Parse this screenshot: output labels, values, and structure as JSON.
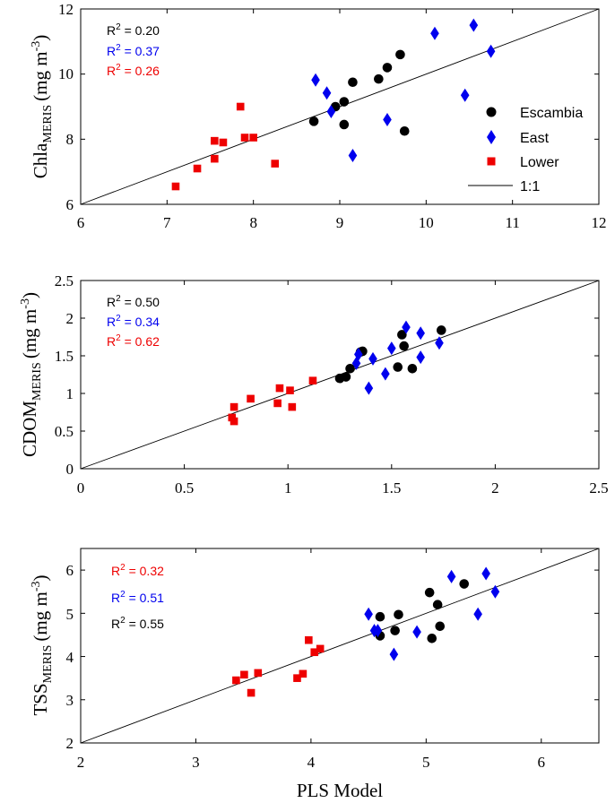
{
  "colors": {
    "Escambia": "#000000",
    "East": "#0000ee",
    "Lower": "#ee0000"
  },
  "chart_data": [
    {
      "type": "scatter",
      "ylabel_main": "Chla",
      "ylabel_sub": "MERIS",
      "ylabel_units": "(mg m",
      "ylabel_exp": "-3",
      "ylabel_close": ")",
      "xlim": [
        6,
        12
      ],
      "ylim": [
        6,
        12
      ],
      "xticks": [
        "6",
        "7",
        "8",
        "9",
        "10",
        "11",
        "12"
      ],
      "yticks": [
        "6",
        "8",
        "10",
        "12"
      ],
      "r2": [
        {
          "label": "R",
          "sup": "2",
          "value": " = 0.20",
          "group": "Escambia"
        },
        {
          "label": "R",
          "sup": "2",
          "value": " = 0.37",
          "group": "East"
        },
        {
          "label": "R",
          "sup": "2",
          "value": " = 0.26",
          "group": "Lower"
        }
      ],
      "legend": [
        {
          "name": "Escambia",
          "marker": "circle"
        },
        {
          "name": "East",
          "marker": "diamond"
        },
        {
          "name": "Lower",
          "marker": "square"
        },
        {
          "name": "1:1",
          "marker": "line"
        }
      ],
      "series": [
        {
          "name": "Escambia",
          "marker": "circle",
          "points": [
            [
              8.7,
              8.55
            ],
            [
              9.05,
              8.45
            ],
            [
              8.95,
              9.0
            ],
            [
              9.05,
              9.15
            ],
            [
              9.15,
              9.75
            ],
            [
              9.45,
              9.85
            ],
            [
              9.55,
              10.2
            ],
            [
              9.7,
              10.6
            ],
            [
              9.75,
              8.25
            ]
          ]
        },
        {
          "name": "East",
          "marker": "diamond",
          "points": [
            [
              8.72,
              9.82
            ],
            [
              8.85,
              9.42
            ],
            [
              8.9,
              8.85
            ],
            [
              9.15,
              7.5
            ],
            [
              9.55,
              8.6
            ],
            [
              10.1,
              11.25
            ],
            [
              10.55,
              11.5
            ],
            [
              10.75,
              10.7
            ],
            [
              10.45,
              9.35
            ]
          ]
        },
        {
          "name": "Lower",
          "marker": "square",
          "points": [
            [
              7.1,
              6.55
            ],
            [
              7.35,
              7.1
            ],
            [
              7.55,
              7.4
            ],
            [
              7.55,
              7.95
            ],
            [
              7.65,
              7.9
            ],
            [
              7.85,
              9.0
            ],
            [
              7.9,
              8.05
            ],
            [
              8.0,
              8.05
            ],
            [
              8.25,
              7.25
            ]
          ]
        }
      ]
    },
    {
      "type": "scatter",
      "ylabel_main": "CDOM",
      "ylabel_sub": "MERIS",
      "ylabel_units": "(mg m",
      "ylabel_exp": "-3",
      "ylabel_close": ")",
      "xlim": [
        0,
        2.5
      ],
      "ylim": [
        0,
        2.5
      ],
      "xticks": [
        "0",
        "0.5",
        "1",
        "1.5",
        "2",
        "2.5"
      ],
      "yticks": [
        "0",
        "0.5",
        "1",
        "1.5",
        "2",
        "2.5"
      ],
      "r2": [
        {
          "label": "R",
          "sup": "2",
          "value": " = 0.50",
          "group": "Escambia"
        },
        {
          "label": "R",
          "sup": "2",
          "value": " = 0.34",
          "group": "East"
        },
        {
          "label": "R",
          "sup": "2",
          "value": " = 0.62",
          "group": "Lower"
        }
      ],
      "series": [
        {
          "name": "Escambia",
          "marker": "circle",
          "points": [
            [
              1.25,
              1.2
            ],
            [
              1.28,
              1.22
            ],
            [
              1.3,
              1.33
            ],
            [
              1.35,
              1.55
            ],
            [
              1.36,
              1.56
            ],
            [
              1.53,
              1.35
            ],
            [
              1.55,
              1.78
            ],
            [
              1.56,
              1.63
            ],
            [
              1.6,
              1.33
            ],
            [
              1.74,
              1.84
            ]
          ]
        },
        {
          "name": "East",
          "marker": "diamond",
          "points": [
            [
              1.33,
              1.4
            ],
            [
              1.34,
              1.52
            ],
            [
              1.39,
              1.07
            ],
            [
              1.41,
              1.46
            ],
            [
              1.47,
              1.26
            ],
            [
              1.5,
              1.6
            ],
            [
              1.57,
              1.88
            ],
            [
              1.64,
              1.8
            ],
            [
              1.64,
              1.48
            ],
            [
              1.73,
              1.67
            ]
          ]
        },
        {
          "name": "Lower",
          "marker": "square",
          "points": [
            [
              0.73,
              0.68
            ],
            [
              0.74,
              0.82
            ],
            [
              0.74,
              0.63
            ],
            [
              0.82,
              0.93
            ],
            [
              0.95,
              0.87
            ],
            [
              0.96,
              1.07
            ],
            [
              1.01,
              1.04
            ],
            [
              1.02,
              0.82
            ],
            [
              1.12,
              1.17
            ]
          ]
        }
      ]
    },
    {
      "type": "scatter",
      "xlabel": "PLS Model",
      "ylabel_main": "TSS",
      "ylabel_sub": "MERIS",
      "ylabel_units": "(mg m",
      "ylabel_exp": "-3",
      "ylabel_close": ")",
      "xlim": [
        2,
        6.5
      ],
      "ylim": [
        2,
        6.5
      ],
      "xticks": [
        "2",
        "3",
        "4",
        "5",
        "6"
      ],
      "yticks": [
        "2",
        "3",
        "4",
        "5",
        "6"
      ],
      "r2": [
        {
          "label": "R",
          "sup": "2",
          "value": " = 0.32",
          "group": "Lower"
        },
        {
          "label": "R",
          "sup": "2",
          "value": " = 0.51",
          "group": "East"
        },
        {
          "label": "R",
          "sup": "2",
          "value": " = 0.55",
          "group": "Escambia"
        }
      ],
      "series": [
        {
          "name": "Escambia",
          "marker": "circle",
          "points": [
            [
              4.6,
              4.92
            ],
            [
              4.6,
              4.48
            ],
            [
              4.73,
              4.6
            ],
            [
              4.76,
              4.97
            ],
            [
              5.03,
              5.48
            ],
            [
              5.05,
              4.42
            ],
            [
              5.1,
              5.2
            ],
            [
              5.12,
              4.7
            ],
            [
              5.33,
              5.68
            ]
          ]
        },
        {
          "name": "East",
          "marker": "diamond",
          "points": [
            [
              4.5,
              4.98
            ],
            [
              4.55,
              4.6
            ],
            [
              4.58,
              4.6
            ],
            [
              4.72,
              4.05
            ],
            [
              4.92,
              4.57
            ],
            [
              5.22,
              5.85
            ],
            [
              5.45,
              4.98
            ],
            [
              5.52,
              5.92
            ],
            [
              5.6,
              5.5
            ]
          ]
        },
        {
          "name": "Lower",
          "marker": "square",
          "points": [
            [
              3.35,
              3.45
            ],
            [
              3.42,
              3.58
            ],
            [
              3.48,
              3.16
            ],
            [
              3.54,
              3.62
            ],
            [
              3.88,
              3.5
            ],
            [
              3.93,
              3.6
            ],
            [
              3.98,
              4.38
            ],
            [
              4.03,
              4.1
            ],
            [
              4.08,
              4.18
            ]
          ]
        }
      ]
    }
  ]
}
